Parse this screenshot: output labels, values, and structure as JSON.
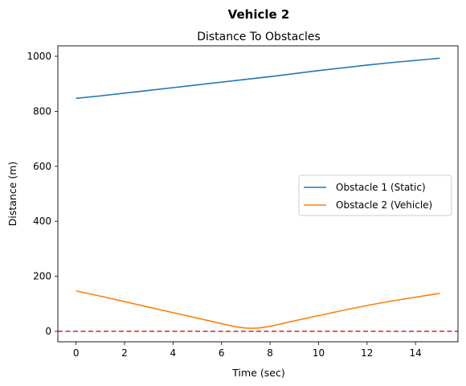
{
  "chart_data": {
    "type": "line",
    "suptitle": "Vehicle 2",
    "title": "Distance To Obstacles",
    "xlabel": "Time (sec)",
    "ylabel": "Distance (m)",
    "xlim": [
      -0.75,
      15.75
    ],
    "ylim": [
      -38,
      1038
    ],
    "xticks": [
      0,
      2,
      4,
      6,
      8,
      10,
      12,
      14
    ],
    "yticks": [
      0,
      200,
      400,
      600,
      800,
      1000
    ],
    "grid": false,
    "legend_position": "center-right",
    "series": [
      {
        "name": "Obstacle 1 (Static)",
        "color": "#1f77b4",
        "x": [
          0,
          1,
          2,
          3,
          4,
          5,
          6,
          7,
          8,
          9,
          10,
          11,
          12,
          13,
          14,
          15
        ],
        "y": [
          847,
          856,
          866,
          876,
          886,
          896,
          906,
          916,
          926,
          937,
          948,
          958,
          968,
          977,
          985,
          993
        ]
      },
      {
        "name": "Obstacle 2 (Vehicle)",
        "color": "#ff7f0e",
        "x": [
          0,
          1,
          2,
          3,
          4,
          5,
          6,
          6.5,
          7,
          7.25,
          7.5,
          8,
          8.5,
          9,
          10,
          11,
          12,
          13,
          14,
          15
        ],
        "y": [
          147,
          128,
          108,
          88,
          68,
          48,
          28,
          18,
          12,
          11,
          12,
          18,
          28,
          38,
          57,
          76,
          94,
          110,
          124,
          138
        ]
      }
    ],
    "reference_line": {
      "y": 0,
      "color": "#d62728",
      "style": "dashed"
    }
  }
}
